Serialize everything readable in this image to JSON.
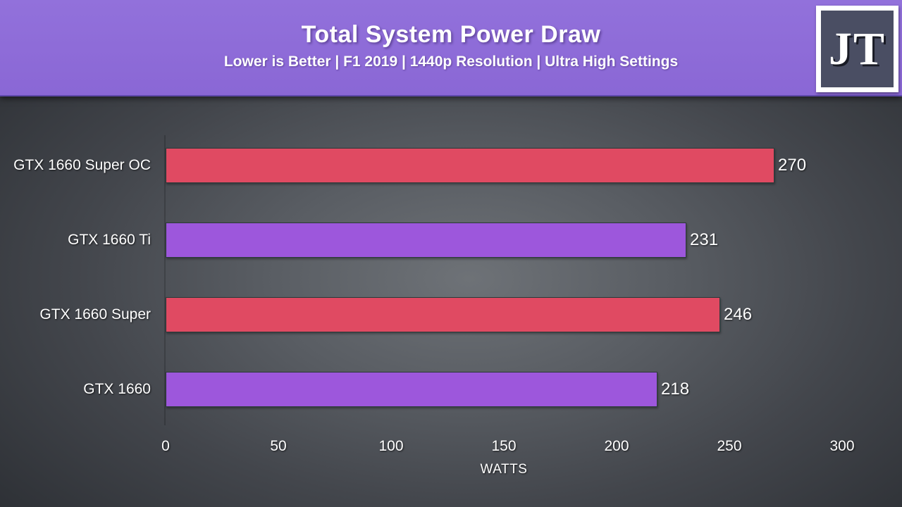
{
  "header": {
    "title": "Total System Power Draw",
    "subtitle": "Lower is Better | F1 2019 | 1440p Resolution | Ultra High Settings",
    "background_color": "#8c69d6",
    "logo": {
      "text": "JT",
      "inner_color": "#4a4e63",
      "border_color": "#ffffff"
    }
  },
  "chart_data": {
    "type": "bar",
    "orientation": "horizontal",
    "title": "Total System Power Draw",
    "categories": [
      "GTX 1660 Super OC",
      "GTX 1660 Ti",
      "GTX 1660 Super",
      "GTX 1660"
    ],
    "values": [
      270,
      231,
      246,
      218
    ],
    "bar_colors": [
      "#e04a62",
      "#9d57dc",
      "#e04a62",
      "#9d57dc"
    ],
    "value_label_color": "#ffffff",
    "xlabel": "WATTS",
    "x_ticks": [
      0,
      50,
      100,
      150,
      200,
      250,
      300
    ],
    "xlim": [
      0,
      300
    ],
    "grid": false,
    "legend_position": "none",
    "background": "dark-gray-radial-gradient"
  }
}
